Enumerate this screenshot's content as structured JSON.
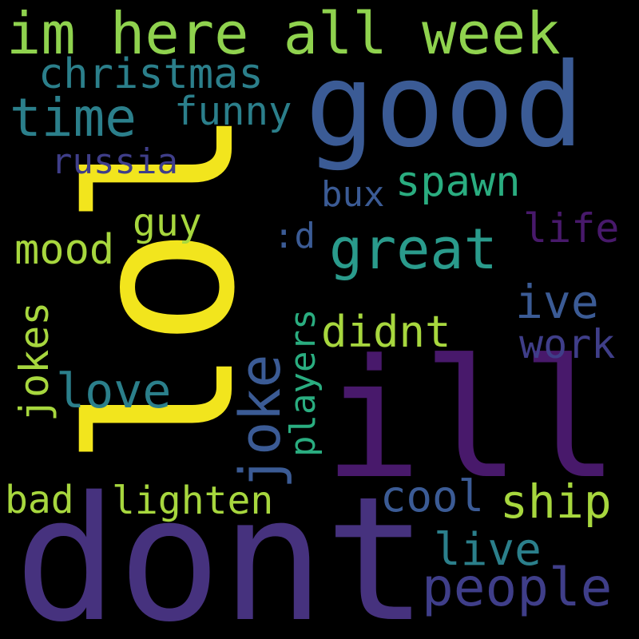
{
  "word_cloud": {
    "words": [
      {
        "text": "lol",
        "color": "#f2e51d"
      },
      {
        "text": "dont",
        "color": "#46327e"
      },
      {
        "text": "ill",
        "color": "#48196b"
      },
      {
        "text": "good",
        "color": "#3b5b95"
      },
      {
        "text": "im here all week",
        "color": "#8fd24e"
      },
      {
        "text": "christmas",
        "color": "#2b7f8b"
      },
      {
        "text": "time",
        "color": "#2b7f8b"
      },
      {
        "text": "funny",
        "color": "#2b7f8b"
      },
      {
        "text": "russia",
        "color": "#3f3e89"
      },
      {
        "text": "spawn",
        "color": "#2aad80"
      },
      {
        "text": "bux",
        "color": "#3b5b95"
      },
      {
        "text": "guy",
        "color": "#a7d73e"
      },
      {
        "text": "life",
        "color": "#48196b"
      },
      {
        "text": ":d",
        "color": "#3b5b95"
      },
      {
        "text": "great",
        "color": "#2a9b8c"
      },
      {
        "text": "mood",
        "color": "#a7d73e"
      },
      {
        "text": "ive",
        "color": "#3b5b95"
      },
      {
        "text": "didnt",
        "color": "#a7d73e"
      },
      {
        "text": "work",
        "color": "#3f3e89"
      },
      {
        "text": "jokes",
        "color": "#a7d73e"
      },
      {
        "text": "love",
        "color": "#2b7f8b"
      },
      {
        "text": "joke",
        "color": "#3b5b95"
      },
      {
        "text": "players",
        "color": "#2aad80"
      },
      {
        "text": "bad",
        "color": "#a7d73e"
      },
      {
        "text": "lighten",
        "color": "#a7d73e"
      },
      {
        "text": "cool",
        "color": "#3b5b95"
      },
      {
        "text": "ship",
        "color": "#a7d73e"
      },
      {
        "text": "live",
        "color": "#2b7f8b"
      },
      {
        "text": "people",
        "color": "#3f3e89"
      }
    ]
  }
}
